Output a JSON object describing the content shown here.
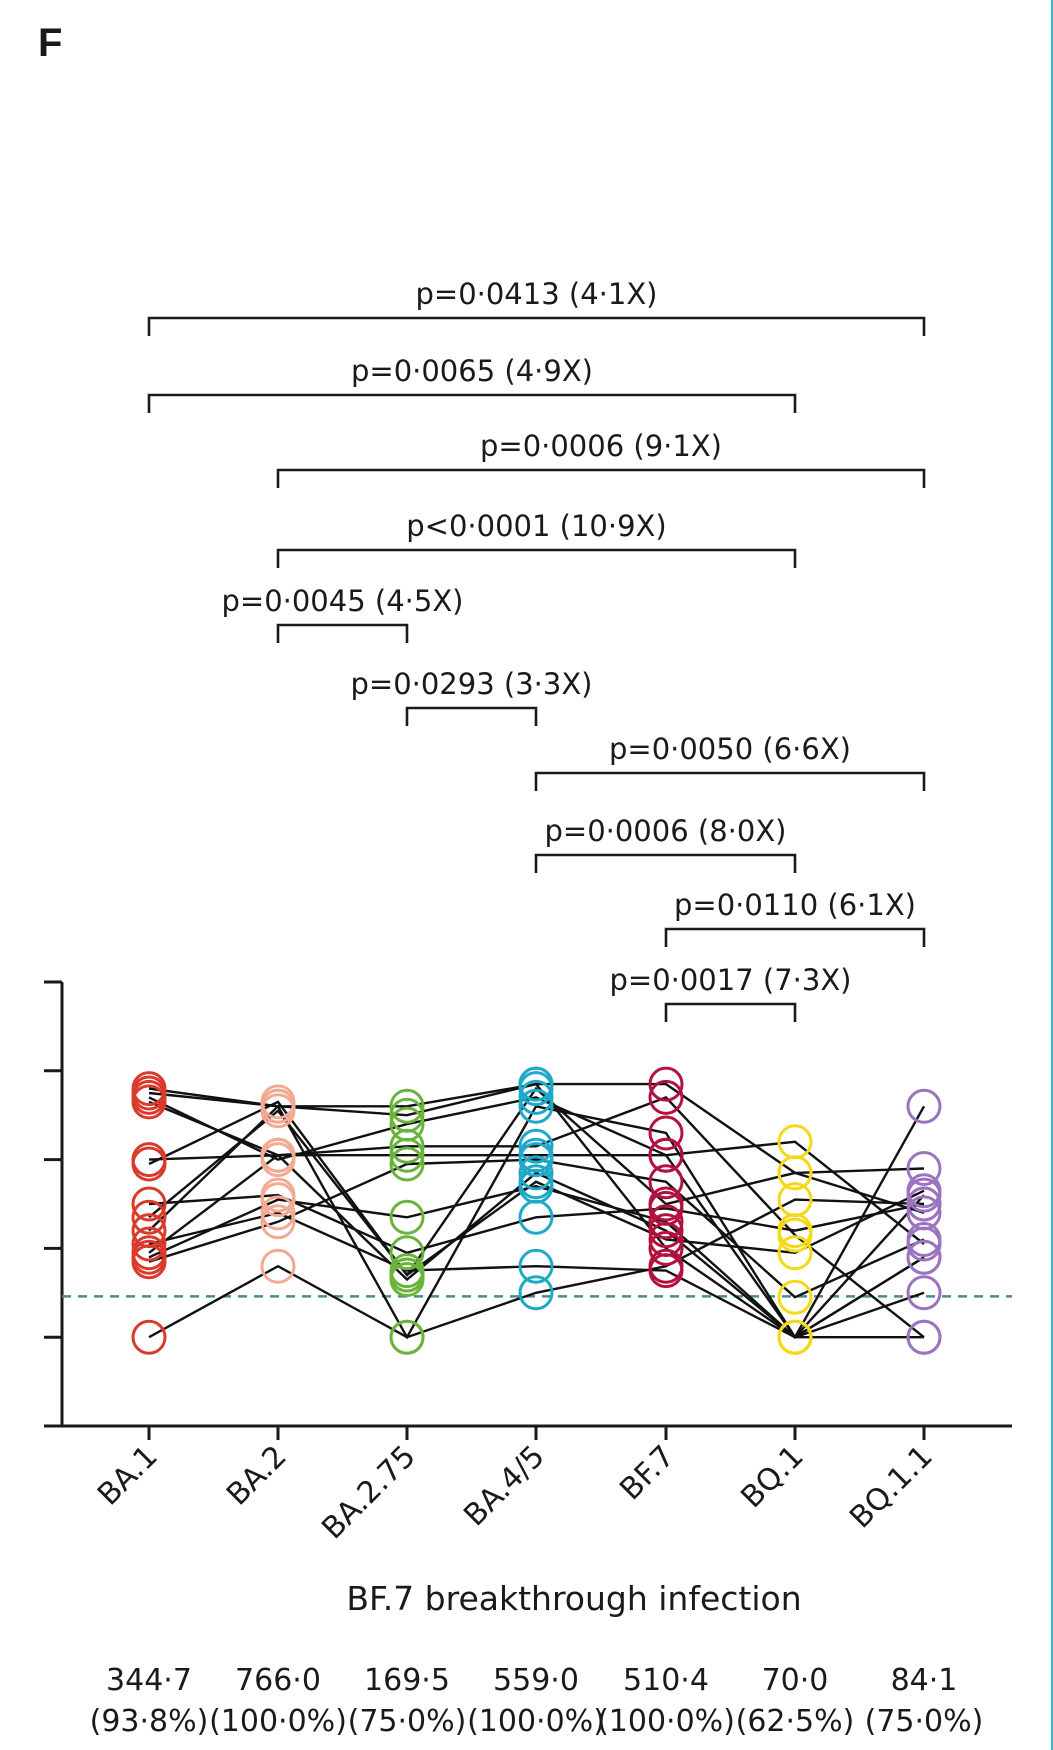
{
  "panel_label": "F",
  "chart_data": {
    "type": "scatter",
    "subtype": "paired-dot-plot",
    "title": "",
    "xlabel": "BF.7 breakthrough infection",
    "ylabel": "",
    "categories": [
      "BA.1",
      "BA.2",
      "BA.2.75",
      "BA.4/5",
      "BF.7",
      "BQ.1",
      "BQ.1.1"
    ],
    "colors": [
      "#d93a2b",
      "#f2ab92",
      "#6ab43c",
      "#1ea9c8",
      "#b4113f",
      "#f5d817",
      "#9b73bf"
    ],
    "y_axis": {
      "ticks": 5,
      "labels_shown": false,
      "ylim": [
        0,
        5
      ]
    },
    "detection_limit": 1.46,
    "detection_line_color": "#4a8a8c",
    "subjects": [
      [
        1.0,
        1.8,
        1.0,
        1.5,
        1.8,
        2.55,
        2.5
      ],
      [
        1.85,
        2.3,
        2.95,
        3.0,
        2.75,
        1.45,
        2.1
      ],
      [
        1.9,
        2.55,
        2.35,
        2.7,
        2.3,
        1.0,
        1.5
      ],
      [
        1.95,
        3.05,
        1.65,
        2.85,
        2.2,
        1.0,
        1.9
      ],
      [
        2.05,
        2.4,
        1.75,
        1.8,
        1.75,
        1.0,
        1.0
      ],
      [
        2.2,
        3.6,
        1.0,
        3.6,
        3.3,
        1.0,
        1.9
      ],
      [
        2.35,
        3.55,
        1.7,
        2.75,
        2.1,
        1.95,
        2.65
      ],
      [
        2.5,
        2.6,
        1.95,
        2.35,
        2.45,
        2.2,
        2.5
      ],
      [
        2.95,
        3.65,
        1.7,
        3.8,
        2.5,
        2.85,
        2.4
      ],
      [
        3.0,
        3.05,
        3.05,
        3.05,
        3.05,
        3.2,
        2.05
      ],
      [
        3.65,
        3.05,
        3.15,
        3.15,
        3.7,
        2.15,
        1.0
      ],
      [
        3.7,
        3.0,
        3.4,
        3.7,
        3.05,
        1.0,
        2.6
      ],
      [
        3.75,
        3.6,
        3.5,
        3.85,
        3.85,
        2.85,
        2.9
      ],
      [
        3.8,
        3.6,
        3.6,
        3.85,
        2.0,
        1.0,
        3.6
      ]
    ],
    "comparisons": [
      {
        "from": "BA.1",
        "to": "BQ.1.1",
        "label": "p=0·0413 (4·1X)"
      },
      {
        "from": "BA.1",
        "to": "BQ.1",
        "label": "p=0·0065 (4·9X)"
      },
      {
        "from": "BA.2",
        "to": "BQ.1.1",
        "label": "p=0·0006 (9·1X)"
      },
      {
        "from": "BA.2",
        "to": "BQ.1",
        "label": "p<0·0001 (10·9X)"
      },
      {
        "from": "BA.2",
        "to": "BA.2.75",
        "label": "p=0·0045 (4·5X)"
      },
      {
        "from": "BA.2.75",
        "to": "BA.4/5",
        "label": "p=0·0293 (3·3X)"
      },
      {
        "from": "BA.4/5",
        "to": "BQ.1.1",
        "label": "p=0·0050 (6·6X)"
      },
      {
        "from": "BA.4/5",
        "to": "BQ.1",
        "label": "p=0·0006 (8·0X)"
      },
      {
        "from": "BF.7",
        "to": "BQ.1.1",
        "label": "p=0·0110 (6·1X)"
      },
      {
        "from": "BF.7",
        "to": "BQ.1",
        "label": "p=0·0017 (7·3X)"
      }
    ],
    "summary": [
      {
        "gmt": "344·7",
        "pct": "(93·8%)"
      },
      {
        "gmt": "766·0",
        "pct": "(100·0%)"
      },
      {
        "gmt": "169·5",
        "pct": "(75·0%)"
      },
      {
        "gmt": "559·0",
        "pct": "(100·0%)"
      },
      {
        "gmt": "510·4",
        "pct": "(100·0%)"
      },
      {
        "gmt": "70·0",
        "pct": "(62·5%)"
      },
      {
        "gmt": "84·1",
        "pct": "(75·0%)"
      }
    ]
  }
}
